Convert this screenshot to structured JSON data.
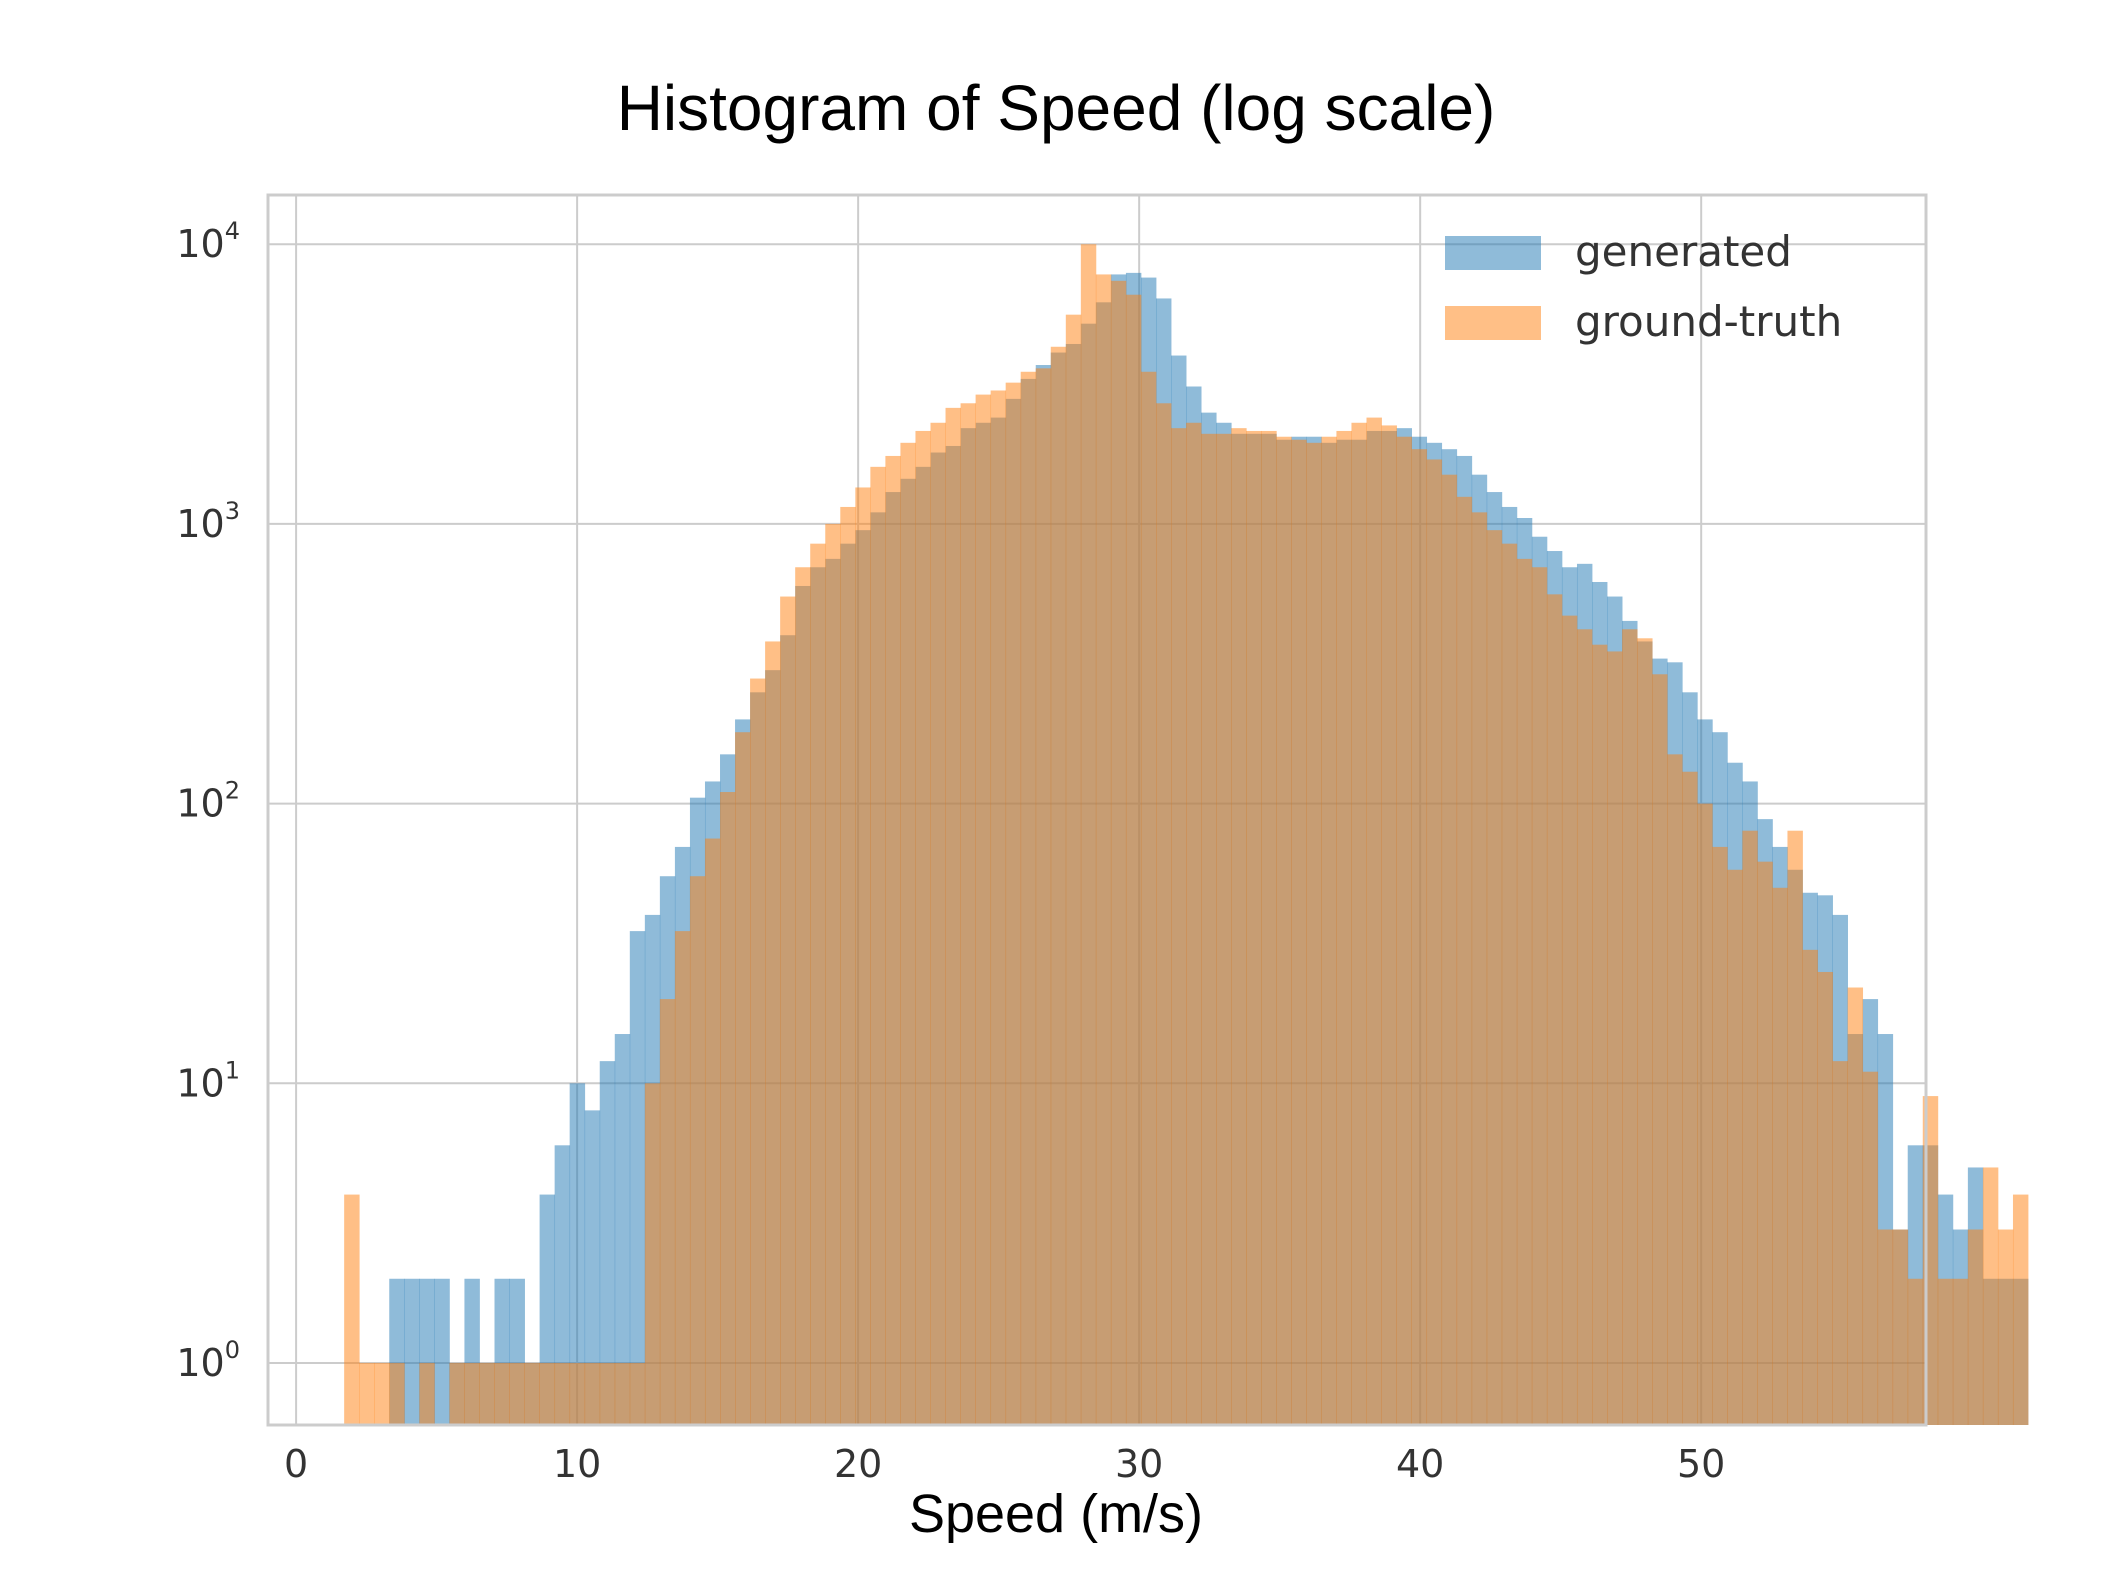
{
  "chart_data": {
    "type": "bar",
    "title": "Histogram of Speed (log scale)",
    "xlabel": "Speed (m/s)",
    "ylabel": "",
    "x_scale": "linear",
    "y_scale": "log",
    "xlim": [
      -1,
      58
    ],
    "ylim": [
      0.6,
      15000
    ],
    "xticks": [
      {
        "value": 0,
        "label": "0"
      },
      {
        "value": 10,
        "label": "10"
      },
      {
        "value": 20,
        "label": "20"
      },
      {
        "value": 30,
        "label": "30"
      },
      {
        "value": 40,
        "label": "40"
      },
      {
        "value": 50,
        "label": "50"
      }
    ],
    "yticks": [
      {
        "value": 1,
        "base": "10",
        "exp": "0"
      },
      {
        "value": 10,
        "base": "10",
        "exp": "1"
      },
      {
        "value": 100,
        "base": "10",
        "exp": "2"
      },
      {
        "value": 1000,
        "base": "10",
        "exp": "3"
      },
      {
        "value": 10000,
        "base": "10",
        "exp": "4"
      }
    ],
    "grid": true,
    "legend_position": "top-right",
    "bin_start": 1.71,
    "bin_width": 0.535,
    "series": [
      {
        "name": "generated",
        "color": "#1f77b4",
        "opacity": 0.5,
        "values": [
          0,
          0,
          0,
          2,
          2,
          2,
          2,
          1,
          2,
          1,
          2,
          2,
          1,
          4,
          6,
          10,
          8,
          12,
          15,
          35,
          40,
          55,
          70,
          105,
          120,
          150,
          200,
          250,
          300,
          400,
          600,
          700,
          750,
          850,
          950,
          1100,
          1300,
          1450,
          1600,
          1800,
          1900,
          2200,
          2300,
          2400,
          2800,
          3300,
          3700,
          4100,
          4400,
          5200,
          6200,
          7800,
          7900,
          7600,
          6400,
          4000,
          3100,
          2500,
          2300,
          2100,
          2100,
          2100,
          2000,
          2050,
          2050,
          1950,
          2000,
          2000,
          2150,
          2150,
          2200,
          2050,
          1950,
          1850,
          1750,
          1500,
          1300,
          1150,
          1050,
          900,
          800,
          700,
          720,
          620,
          550,
          450,
          380,
          330,
          320,
          250,
          200,
          180,
          140,
          120,
          88,
          70,
          58,
          48,
          47,
          40,
          15,
          20,
          15,
          3,
          6,
          6,
          4,
          3,
          5,
          2,
          2,
          2
        ]
      },
      {
        "name": "ground-truth",
        "color": "#ff7f0e",
        "opacity": 0.5,
        "values": [
          4,
          1,
          1,
          1,
          0,
          1,
          0,
          1,
          1,
          1,
          1,
          1,
          1,
          1,
          1,
          1,
          1,
          1,
          1,
          1,
          10,
          20,
          35,
          55,
          75,
          110,
          180,
          280,
          380,
          550,
          700,
          850,
          1000,
          1150,
          1350,
          1600,
          1750,
          1950,
          2150,
          2300,
          2600,
          2700,
          2900,
          3000,
          3200,
          3500,
          3600,
          4300,
          5600,
          10000,
          7800,
          7400,
          6600,
          3500,
          2700,
          2200,
          2300,
          2100,
          2100,
          2200,
          2150,
          2150,
          2050,
          2000,
          1950,
          2050,
          2150,
          2300,
          2400,
          2250,
          2050,
          1850,
          1700,
          1500,
          1250,
          1100,
          950,
          850,
          750,
          700,
          560,
          470,
          420,
          370,
          350,
          420,
          390,
          290,
          150,
          130,
          100,
          70,
          58,
          80,
          62,
          50,
          80,
          30,
          25,
          12,
          22,
          11,
          3,
          3,
          2,
          9,
          2,
          2,
          3,
          5,
          3,
          4
        ]
      }
    ]
  },
  "legend": {
    "items": [
      {
        "label": "generated",
        "color": "#1f77b4"
      },
      {
        "label": "ground-truth",
        "color": "#ff7f0e"
      }
    ]
  }
}
